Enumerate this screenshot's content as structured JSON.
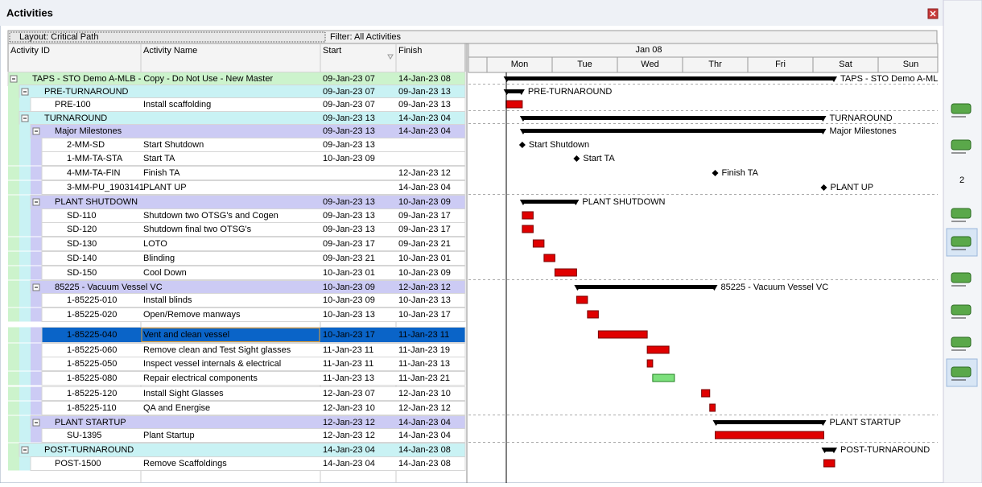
{
  "window": {
    "title": "Activities"
  },
  "toolbar": {
    "layout": "Layout: Critical Path",
    "filter": "Filter: All Activities"
  },
  "columns": [
    "Activity ID",
    "Activity Name",
    "Start",
    "Finish"
  ],
  "timescale": {
    "week": "Jan 08",
    "days": [
      "Mon",
      "Tue",
      "Wed",
      "Thr",
      "Fri",
      "Sat",
      "Sun"
    ]
  },
  "rows": [
    [
      "TAPS - STO Demo A-MLB - Copy - Do Not Use - New Master",
      null,
      "09-Jan-23 07",
      "14-Jan-23 08"
    ],
    [
      "PRE-TURNAROUND",
      null,
      "09-Jan-23 07",
      "09-Jan-23 13"
    ],
    [
      "PRE-100",
      "Install scaffolding",
      "09-Jan-23 07",
      "09-Jan-23 13"
    ],
    [
      "TURNAROUND",
      null,
      "09-Jan-23 13",
      "14-Jan-23 04"
    ],
    [
      "Major Milestones",
      null,
      "09-Jan-23 13",
      "14-Jan-23 04"
    ],
    [
      "2-MM-SD",
      "Start Shutdown",
      "09-Jan-23 13",
      null
    ],
    [
      "1-MM-TA-STA",
      "Start TA",
      "10-Jan-23 09",
      null
    ],
    [
      "4-MM-TA-FIN",
      "Finish TA",
      null,
      "12-Jan-23 12"
    ],
    [
      "3-MM-PU_1903141",
      "PLANT UP",
      null,
      "14-Jan-23 04"
    ],
    [
      "PLANT SHUTDOWN",
      null,
      "09-Jan-23 13",
      "10-Jan-23 09"
    ],
    [
      "SD-110",
      "Shutdown two OTSG's and Cogen",
      "09-Jan-23 13",
      "09-Jan-23 17"
    ],
    [
      "SD-120",
      "Shutdown final two OTSG's",
      "09-Jan-23 13",
      "09-Jan-23 17"
    ],
    [
      "SD-130",
      "LOTO",
      "09-Jan-23 17",
      "09-Jan-23 21"
    ],
    [
      "SD-140",
      "Blinding",
      "09-Jan-23 21",
      "10-Jan-23 01"
    ],
    [
      "SD-150",
      "Cool Down",
      "10-Jan-23 01",
      "10-Jan-23 09"
    ],
    [
      "85225 - Vacuum Vessel VC",
      null,
      "10-Jan-23 09",
      "12-Jan-23 12"
    ],
    [
      "1-85225-010",
      "Install blinds",
      "10-Jan-23 09",
      "10-Jan-23 13"
    ],
    [
      "1-85225-020",
      "Open/Remove manways",
      "10-Jan-23 13",
      "10-Jan-23 17"
    ],
    [
      "1-85225-040",
      "Vent and clean vessel",
      "10-Jan-23 17",
      "11-Jan-23 11"
    ],
    [
      "1-85225-060",
      "Remove  clean and Test Sight glasses",
      "11-Jan-23 11",
      "11-Jan-23 19"
    ],
    [
      "1-85225-050",
      "Inspect vessel internals & electrical",
      "11-Jan-23 11",
      "11-Jan-23 13"
    ],
    [
      "1-85225-080",
      "Repair electrical components",
      "11-Jan-23 13",
      "11-Jan-23 21"
    ],
    [
      "1-85225-120",
      "Install Sight Glasses",
      "12-Jan-23 07",
      "12-Jan-23 10"
    ],
    [
      "1-85225-110",
      "QA and Energise",
      "12-Jan-23 10",
      "12-Jan-23 12"
    ],
    [
      "PLANT STARTUP",
      null,
      "12-Jan-23 12",
      "14-Jan-23 04"
    ],
    [
      "SU-1395",
      "Plant Startup",
      "12-Jan-23 12",
      "14-Jan-23 04"
    ],
    [
      "POST-TURNAROUND",
      null,
      "14-Jan-23 04",
      "14-Jan-23 08"
    ],
    [
      "POST-1500",
      "Remove Scaffoldings",
      "14-Jan-23 04",
      "14-Jan-23 08"
    ]
  ],
  "side_toolbar": {
    "count": "2"
  }
}
